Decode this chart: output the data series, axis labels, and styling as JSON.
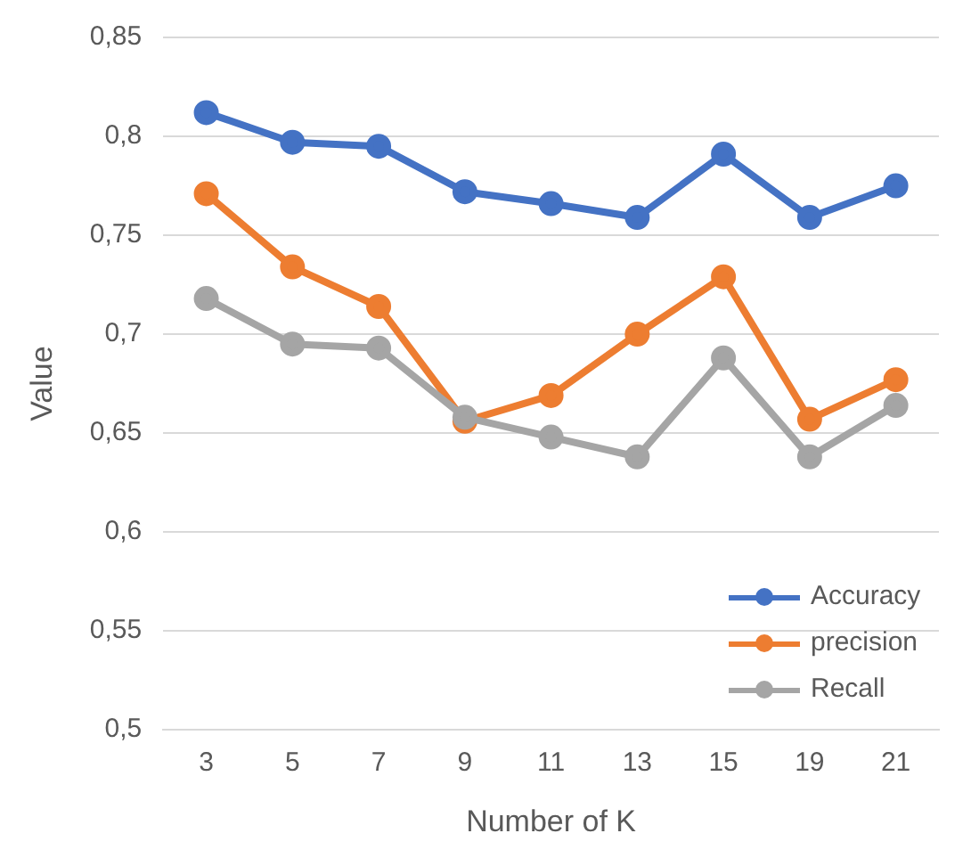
{
  "chart_data": {
    "type": "line",
    "xlabel": "Number of K",
    "ylabel": "Value",
    "categories": [
      "3",
      "5",
      "7",
      "9",
      "11",
      "13",
      "15",
      "19",
      "21"
    ],
    "series": [
      {
        "name": "Accuracy",
        "color": "#4472c4",
        "values": [
          0.812,
          0.797,
          0.795,
          0.772,
          0.766,
          0.759,
          0.791,
          0.759,
          0.775
        ]
      },
      {
        "name": "precision",
        "color": "#ed7d31",
        "values": [
          0.771,
          0.734,
          0.714,
          0.656,
          0.669,
          0.7,
          0.729,
          0.657,
          0.677
        ]
      },
      {
        "name": "Recall",
        "color": "#a5a5a5",
        "values": [
          0.718,
          0.695,
          0.693,
          0.658,
          0.648,
          0.638,
          0.688,
          0.638,
          0.664
        ]
      }
    ],
    "ylim": [
      0.5,
      0.85
    ],
    "yticks": [
      {
        "value": 0.5,
        "label": "0,5"
      },
      {
        "value": 0.55,
        "label": "0,55"
      },
      {
        "value": 0.6,
        "label": "0,6"
      },
      {
        "value": 0.65,
        "label": "0,65"
      },
      {
        "value": 0.7,
        "label": "0,7"
      },
      {
        "value": 0.75,
        "label": "0,75"
      },
      {
        "value": 0.8,
        "label": "0,8"
      },
      {
        "value": 0.85,
        "label": "0,85"
      }
    ],
    "grid": "y",
    "legend": "bottom right",
    "marker": "circle",
    "line_style": "solid"
  }
}
